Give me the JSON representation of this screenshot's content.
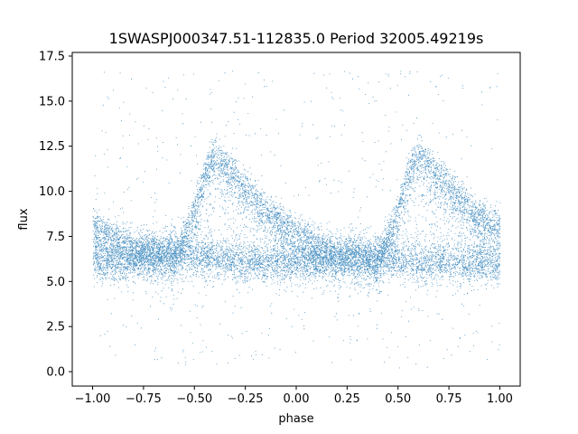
{
  "chart_data": {
    "type": "scatter",
    "title": "1SWASPJ000347.51-112835.0 Period 32005.49219s",
    "xlabel": "phase",
    "ylabel": "flux",
    "xlim": [
      -1.1,
      1.1
    ],
    "ylim": [
      -0.8,
      17.7
    ],
    "xticks": [
      -1.0,
      -0.75,
      -0.5,
      -0.25,
      0.0,
      0.25,
      0.5,
      0.75,
      1.0
    ],
    "xtick_labels": [
      "−1.00",
      "−0.75",
      "−0.50",
      "−0.25",
      "0.00",
      "0.25",
      "0.50",
      "0.75",
      "1.00"
    ],
    "yticks": [
      0.0,
      2.5,
      5.0,
      7.5,
      10.0,
      12.5,
      15.0,
      17.5
    ],
    "ytick_labels": [
      "0.0",
      "2.5",
      "5.0",
      "7.5",
      "10.0",
      "12.5",
      "15.0",
      "17.5"
    ],
    "grid": false,
    "legend": "none",
    "point_color": "#1f77b4",
    "series": [
      {
        "description_values": "phase-folded light curve repeated over two cycles",
        "x": [
          -1.0,
          -0.9,
          -0.8,
          -0.7,
          -0.6,
          -0.5,
          -0.45,
          -0.4,
          -0.3,
          -0.2,
          -0.1,
          0.0,
          0.1,
          0.2,
          0.3,
          0.4,
          0.5,
          0.55,
          0.6,
          0.7,
          0.8,
          0.9,
          1.0
        ],
        "y_upper_envelope": [
          8.6,
          8.0,
          7.4,
          6.9,
          6.6,
          9.5,
          11.5,
          12.6,
          11.3,
          10.1,
          9.0,
          8.2,
          7.5,
          6.9,
          6.6,
          6.4,
          9.5,
          11.5,
          12.6,
          11.3,
          10.1,
          9.0,
          8.6
        ],
        "y_baseline": [
          6.2,
          6.0,
          6.3,
          6.6,
          6.8,
          6.4,
          6.3,
          6.2,
          6.1,
          6.1,
          6.0,
          6.0,
          6.2,
          6.4,
          6.6,
          6.4,
          6.2,
          6.1,
          6.0,
          6.1,
          6.0,
          6.0,
          6.0
        ]
      }
    ]
  }
}
